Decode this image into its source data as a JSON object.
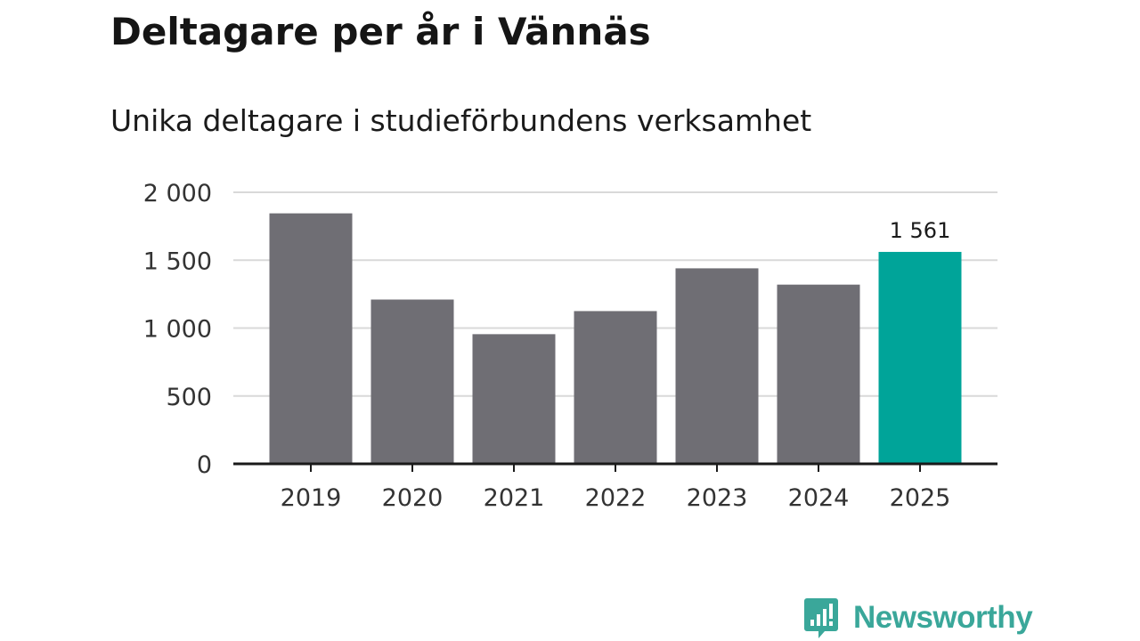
{
  "chart_data": {
    "type": "bar",
    "title": "Deltagare per år i Vännäs",
    "subtitle": "Unika deltagare i studieförbundens verksamhet",
    "categories": [
      "2019",
      "2020",
      "2021",
      "2022",
      "2023",
      "2024",
      "2025"
    ],
    "values": [
      1845,
      1210,
      955,
      1125,
      1440,
      1320,
      1561
    ],
    "highlight_index": 6,
    "highlight_label": "1 561",
    "ylim": [
      0,
      2000
    ],
    "yticks": [
      0,
      500,
      1000,
      1500,
      2000
    ],
    "ytick_labels": [
      "0",
      "500",
      "1 000",
      "1 500",
      "2 000"
    ],
    "grid": true,
    "colors": {
      "bar": "#6f6e74",
      "highlight": "#00a499",
      "grid": "#d9d9d9",
      "axis": "#1a1a1a"
    }
  },
  "brand": {
    "name": "Newsworthy",
    "icon": "newsworthy-logo-icon",
    "color": "#3aa79a"
  }
}
